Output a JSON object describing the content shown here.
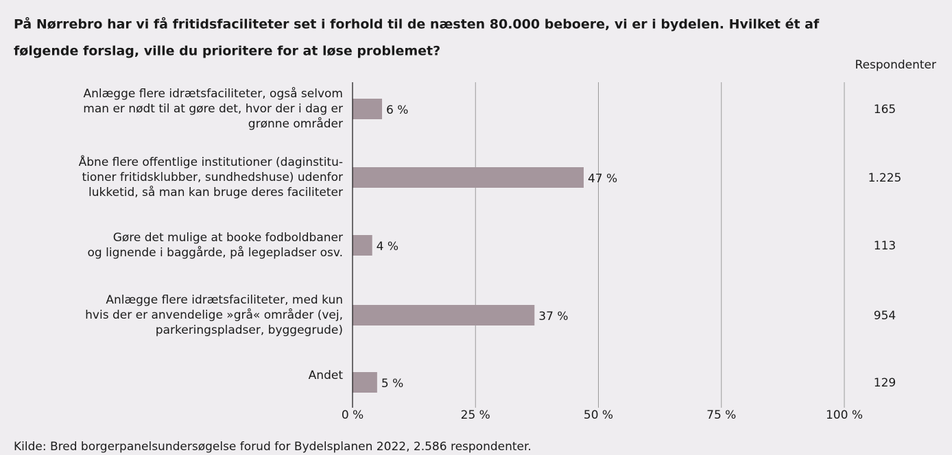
{
  "chart_data": {
    "type": "barh",
    "title_lines": [
      "På Nørrebro har vi få fritidsfaciliteter set i forhold til de næsten 80.000 beboere, vi er i bydelen. Hvilket ét af",
      "følgende forslag, ville du prioritere for at løse problemet?"
    ],
    "categories": [
      "Anlægge flere idrætsfaciliteter, også selvom\nman er nødt til at gøre det, hvor der i dag er\ngrønne områder",
      "Åbne flere offentlige institutioner (daginstitu-\ntioner fritidsklubber, sundhedshuse) udenfor\nlukketid, så man kan bruge deres faciliteter",
      "Gøre det mulige at booke fodboldbaner\nog lignende i baggårde, på legepladser osv.",
      "Anlægge flere idrætsfaciliteter, med kun\nhvis der er anvendelige »grå« områder (vej,\nparkeringspladser, byggegrude)",
      "Andet"
    ],
    "values": [
      6,
      47,
      4,
      37,
      5
    ],
    "value_labels": [
      "6 %",
      "47 %",
      "4 %",
      "37 %",
      "5 %"
    ],
    "color": "#a5969d",
    "xlim": [
      0,
      100
    ],
    "xticks": [
      {
        "value": 0,
        "label": "0 %"
      },
      {
        "value": 25,
        "label": "25 %"
      },
      {
        "value": 50,
        "label": "50 %"
      },
      {
        "value": 75,
        "label": "75 %"
      },
      {
        "value": 100,
        "label": "100 %"
      }
    ],
    "grid": true,
    "respondents_title": "Respondenter",
    "respondents": [
      "165",
      "1.225",
      "113",
      "954",
      "129"
    ],
    "source": "Kilde: Bred borgerpanelsundersøgelse forud for Bydelsplanen 2022, 2.586 respondenter."
  }
}
